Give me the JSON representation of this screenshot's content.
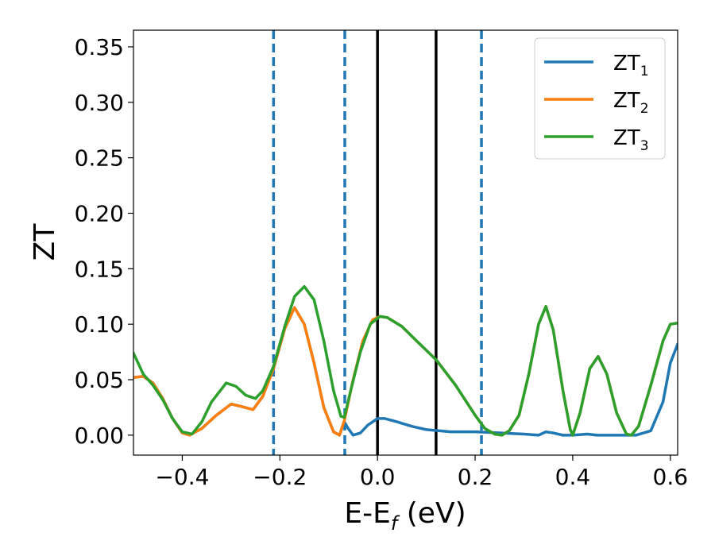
{
  "chart_data": {
    "type": "line",
    "xlabel": "E-E",
    "xlabel_sub": "f",
    "xlabel_unit": " (eV)",
    "ylabel": "ZT",
    "xlim": [
      -0.5,
      0.615
    ],
    "ylim": [
      -0.018,
      0.365
    ],
    "xticks": [
      -0.4,
      -0.2,
      0.0,
      0.2,
      0.4,
      0.6
    ],
    "xtick_labels": [
      "−0.4",
      "−0.2",
      "0.0",
      "0.2",
      "0.4",
      "0.6"
    ],
    "yticks": [
      0.0,
      0.05,
      0.1,
      0.15,
      0.2,
      0.25,
      0.3,
      0.35
    ],
    "ytick_labels": [
      "0.00",
      "0.05",
      "0.10",
      "0.15",
      "0.20",
      "0.25",
      "0.30",
      "0.35"
    ],
    "grid": false,
    "legend_position": "top-right",
    "vlines_solid": [
      0.0,
      0.12
    ],
    "vlines_dashed": [
      -0.213,
      -0.067,
      0.213
    ],
    "series": [
      {
        "name": "ZT",
        "name_sub": "1",
        "color": "#1f77b4",
        "points": [
          [
            -0.5,
            0.052
          ],
          [
            -0.48,
            0.053
          ],
          [
            -0.46,
            0.047
          ],
          [
            -0.44,
            0.033
          ],
          [
            -0.42,
            0.015
          ],
          [
            -0.4,
            0.002
          ],
          [
            -0.385,
            0.0
          ],
          [
            -0.36,
            0.006
          ],
          [
            -0.33,
            0.018
          ],
          [
            -0.3,
            0.028
          ],
          [
            -0.28,
            0.026
          ],
          [
            -0.255,
            0.023
          ],
          [
            -0.235,
            0.035
          ],
          [
            -0.213,
            0.06
          ],
          [
            -0.19,
            0.096
          ],
          [
            -0.17,
            0.115
          ],
          [
            -0.15,
            0.1
          ],
          [
            -0.13,
            0.065
          ],
          [
            -0.11,
            0.025
          ],
          [
            -0.09,
            0.003
          ],
          [
            -0.078,
            0.0
          ],
          [
            -0.068,
            0.012
          ],
          [
            -0.06,
            0.006
          ],
          [
            -0.05,
            0.0
          ],
          [
            -0.035,
            0.002
          ],
          [
            -0.02,
            0.009
          ],
          [
            0.0,
            0.015
          ],
          [
            0.015,
            0.015
          ],
          [
            0.04,
            0.012
          ],
          [
            0.07,
            0.008
          ],
          [
            0.1,
            0.005
          ],
          [
            0.15,
            0.003
          ],
          [
            0.2,
            0.003
          ],
          [
            0.25,
            0.002
          ],
          [
            0.3,
            0.001
          ],
          [
            0.33,
            0.0
          ],
          [
            0.345,
            0.003
          ],
          [
            0.36,
            0.002
          ],
          [
            0.38,
            0.0
          ],
          [
            0.4,
            0.0
          ],
          [
            0.43,
            0.001
          ],
          [
            0.45,
            0.0
          ],
          [
            0.5,
            0.0
          ],
          [
            0.53,
            0.0
          ],
          [
            0.56,
            0.004
          ],
          [
            0.585,
            0.03
          ],
          [
            0.6,
            0.065
          ],
          [
            0.615,
            0.082
          ]
        ]
      },
      {
        "name": "ZT",
        "name_sub": "2",
        "color": "#ff7f0e",
        "points": [
          [
            -0.5,
            0.052
          ],
          [
            -0.48,
            0.053
          ],
          [
            -0.46,
            0.047
          ],
          [
            -0.44,
            0.033
          ],
          [
            -0.42,
            0.015
          ],
          [
            -0.4,
            0.002
          ],
          [
            -0.385,
            0.0
          ],
          [
            -0.36,
            0.006
          ],
          [
            -0.33,
            0.018
          ],
          [
            -0.3,
            0.028
          ],
          [
            -0.28,
            0.026
          ],
          [
            -0.255,
            0.023
          ],
          [
            -0.235,
            0.035
          ],
          [
            -0.213,
            0.06
          ],
          [
            -0.19,
            0.096
          ],
          [
            -0.17,
            0.115
          ],
          [
            -0.15,
            0.1
          ],
          [
            -0.13,
            0.065
          ],
          [
            -0.11,
            0.025
          ],
          [
            -0.09,
            0.003
          ],
          [
            -0.078,
            0.0
          ],
          [
            -0.068,
            0.013
          ],
          [
            -0.05,
            0.05
          ],
          [
            -0.03,
            0.085
          ],
          [
            -0.01,
            0.104
          ],
          [
            0.005,
            0.107
          ],
          [
            0.02,
            0.106
          ],
          [
            0.05,
            0.098
          ],
          [
            0.08,
            0.085
          ],
          [
            0.12,
            0.068
          ],
          [
            0.16,
            0.045
          ],
          [
            0.2,
            0.018
          ],
          [
            0.22,
            0.006
          ],
          [
            0.24,
            0.001
          ],
          [
            0.255,
            0.0
          ],
          [
            0.27,
            0.004
          ],
          [
            0.29,
            0.018
          ],
          [
            0.31,
            0.055
          ],
          [
            0.33,
            0.1
          ],
          [
            0.345,
            0.116
          ],
          [
            0.36,
            0.095
          ],
          [
            0.38,
            0.04
          ],
          [
            0.395,
            0.005
          ],
          [
            0.4,
            0.0
          ],
          [
            0.415,
            0.02
          ],
          [
            0.435,
            0.06
          ],
          [
            0.452,
            0.071
          ],
          [
            0.47,
            0.055
          ],
          [
            0.49,
            0.02
          ],
          [
            0.51,
            0.001
          ],
          [
            0.52,
            0.0
          ],
          [
            0.535,
            0.008
          ],
          [
            0.56,
            0.045
          ],
          [
            0.585,
            0.085
          ],
          [
            0.6,
            0.1
          ],
          [
            0.615,
            0.101
          ]
        ]
      },
      {
        "name": "ZT",
        "name_sub": "3",
        "color": "#2ca02c",
        "points": [
          [
            -0.5,
            0.074
          ],
          [
            -0.48,
            0.055
          ],
          [
            -0.46,
            0.045
          ],
          [
            -0.44,
            0.032
          ],
          [
            -0.42,
            0.015
          ],
          [
            -0.4,
            0.003
          ],
          [
            -0.38,
            0.001
          ],
          [
            -0.36,
            0.012
          ],
          [
            -0.34,
            0.03
          ],
          [
            -0.31,
            0.047
          ],
          [
            -0.29,
            0.044
          ],
          [
            -0.27,
            0.036
          ],
          [
            -0.25,
            0.033
          ],
          [
            -0.235,
            0.04
          ],
          [
            -0.213,
            0.062
          ],
          [
            -0.19,
            0.098
          ],
          [
            -0.17,
            0.125
          ],
          [
            -0.15,
            0.134
          ],
          [
            -0.13,
            0.122
          ],
          [
            -0.11,
            0.085
          ],
          [
            -0.09,
            0.04
          ],
          [
            -0.075,
            0.017
          ],
          [
            -0.068,
            0.016
          ],
          [
            -0.055,
            0.04
          ],
          [
            -0.035,
            0.075
          ],
          [
            -0.015,
            0.1
          ],
          [
            0.005,
            0.107
          ],
          [
            0.02,
            0.106
          ],
          [
            0.05,
            0.098
          ],
          [
            0.08,
            0.085
          ],
          [
            0.12,
            0.068
          ],
          [
            0.16,
            0.045
          ],
          [
            0.2,
            0.018
          ],
          [
            0.22,
            0.006
          ],
          [
            0.24,
            0.001
          ],
          [
            0.255,
            0.0
          ],
          [
            0.27,
            0.004
          ],
          [
            0.29,
            0.018
          ],
          [
            0.31,
            0.055
          ],
          [
            0.33,
            0.1
          ],
          [
            0.345,
            0.116
          ],
          [
            0.36,
            0.095
          ],
          [
            0.38,
            0.04
          ],
          [
            0.395,
            0.005
          ],
          [
            0.4,
            0.0
          ],
          [
            0.415,
            0.02
          ],
          [
            0.435,
            0.06
          ],
          [
            0.452,
            0.071
          ],
          [
            0.47,
            0.055
          ],
          [
            0.49,
            0.02
          ],
          [
            0.51,
            0.001
          ],
          [
            0.52,
            0.0
          ],
          [
            0.535,
            0.008
          ],
          [
            0.56,
            0.045
          ],
          [
            0.585,
            0.085
          ],
          [
            0.6,
            0.1
          ],
          [
            0.615,
            0.101
          ]
        ]
      }
    ]
  }
}
